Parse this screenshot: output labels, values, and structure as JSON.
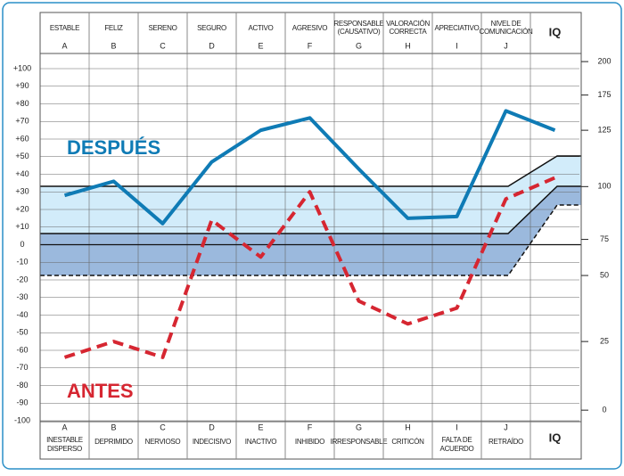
{
  "chart_data": {
    "type": "line",
    "categories": [
      "A",
      "B",
      "C",
      "D",
      "E",
      "F",
      "G",
      "H",
      "I",
      "J",
      "IQ"
    ],
    "top_labels": [
      [
        "ESTABLE"
      ],
      [
        "FELIZ"
      ],
      [
        "SERENO"
      ],
      [
        "SEGURO"
      ],
      [
        "ACTIVO"
      ],
      [
        "AGRESIVO"
      ],
      [
        "RESPONSABLE",
        "(CAUSATIVO)"
      ],
      [
        "VALORACIÓN",
        "CORRECTA"
      ],
      [
        "APRECIATIVO"
      ],
      [
        "NIVEL DE",
        "COMUNICACIÓN"
      ]
    ],
    "bottom_labels": [
      [
        "INESTABLE",
        "DISPERSO"
      ],
      [
        "DEPRIMIDO"
      ],
      [
        "NERVIOSO"
      ],
      [
        "INDECISIVO"
      ],
      [
        "INACTIVO"
      ],
      [
        "INHIBIDO"
      ],
      [
        "IRRESPONSABLE"
      ],
      [
        "CRITICÓN"
      ],
      [
        "FALTA DE",
        "ACUERDO"
      ],
      [
        "RETRAÍDO"
      ]
    ],
    "series": [
      {
        "name": "DESPUÉS",
        "color": "#0f7bb5",
        "dash": false,
        "values": [
          28,
          36,
          12,
          47,
          65,
          72,
          43,
          15,
          16,
          76,
          65
        ]
      },
      {
        "name": "ANTES",
        "color": "#d62631",
        "dash": true,
        "values": [
          -64,
          -55,
          -64,
          14,
          -7,
          30,
          -32,
          -45,
          -36,
          26,
          38
        ]
      }
    ],
    "ylim": [
      -100,
      100
    ],
    "yticks": [
      {
        "value": 100,
        "label": "+100"
      },
      {
        "value": 90,
        "label": "+90"
      },
      {
        "value": 80,
        "label": "+80"
      },
      {
        "value": 70,
        "label": "+70"
      },
      {
        "value": 60,
        "label": "+60"
      },
      {
        "value": 50,
        "label": "+50"
      },
      {
        "value": 40,
        "label": "+40"
      },
      {
        "value": 30,
        "label": "+30"
      },
      {
        "value": 20,
        "label": "+20"
      },
      {
        "value": 10,
        "label": "+10"
      },
      0,
      -10,
      -20,
      -30,
      -40,
      -50,
      -60,
      -70,
      -80,
      -90,
      -100
    ],
    "y2ticks": [
      0,
      25,
      50,
      75,
      100,
      125,
      175,
      200
    ],
    "y2_positions": [
      -94,
      -55,
      -17.5,
      3,
      33,
      65,
      85,
      104
    ],
    "grid": true
  }
}
